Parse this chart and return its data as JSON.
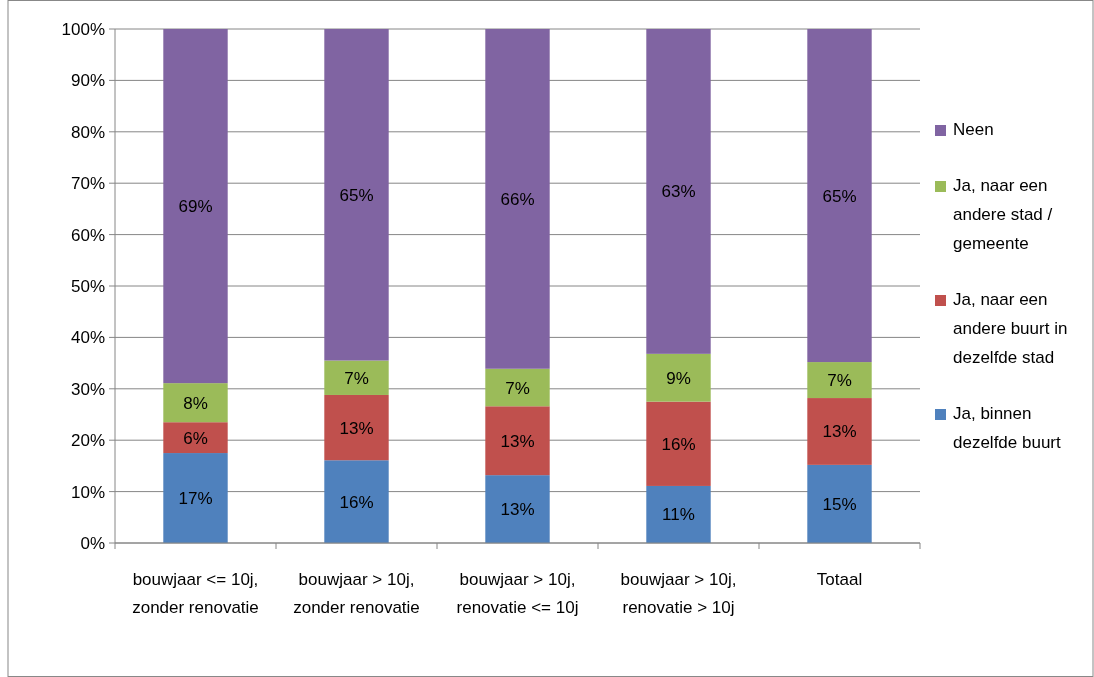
{
  "chart_data": {
    "type": "bar",
    "stacked": true,
    "categories": [
      "bouwjaar <= 10j, zonder renovatie",
      "bouwjaar > 10j, zonder renovatie",
      "bouwjaar > 10j, renovatie <= 10j",
      "bouwjaar > 10j, renovatie > 10j",
      "Totaal"
    ],
    "series": [
      {
        "name": "Ja, binnen dezelfde buurt",
        "color": "#4f81bd",
        "values": [
          17.5,
          16.1,
          13.2,
          11.1,
          15.2
        ],
        "value_labels": [
          "17%",
          "16%",
          "13%",
          "11%",
          "15%"
        ]
      },
      {
        "name": "Ja, naar een andere buurt in dezelfde stad",
        "color": "#c0504d",
        "values": [
          6.0,
          12.7,
          13.4,
          16.4,
          13.0
        ],
        "value_labels": [
          "6%",
          "13%",
          "13%",
          "16%",
          "13%"
        ]
      },
      {
        "name": "Ja, naar een andere stad / gemeente",
        "color": "#9bbb59",
        "values": [
          7.6,
          6.7,
          7.3,
          9.3,
          7.0
        ],
        "value_labels": [
          "8%",
          "7%",
          "7%",
          "9%",
          "7%"
        ]
      },
      {
        "name": "Neen",
        "color": "#8064a2",
        "values": [
          68.9,
          64.5,
          66.1,
          63.2,
          64.8
        ],
        "value_labels": [
          "69%",
          "65%",
          "66%",
          "63%",
          "65%"
        ]
      }
    ],
    "ylim": [
      0,
      100
    ],
    "yticks": [
      {
        "value": 0,
        "label": "0%"
      },
      {
        "value": 10,
        "label": "10%"
      },
      {
        "value": 20,
        "label": "20%"
      },
      {
        "value": 30,
        "label": "30%"
      },
      {
        "value": 40,
        "label": "40%"
      },
      {
        "value": 50,
        "label": "50%"
      },
      {
        "value": 60,
        "label": "60%"
      },
      {
        "value": 70,
        "label": "70%"
      },
      {
        "value": 80,
        "label": "80%"
      },
      {
        "value": 90,
        "label": "90%"
      },
      {
        "value": 100,
        "label": "100%"
      }
    ],
    "grid": "y",
    "legend": "right"
  }
}
